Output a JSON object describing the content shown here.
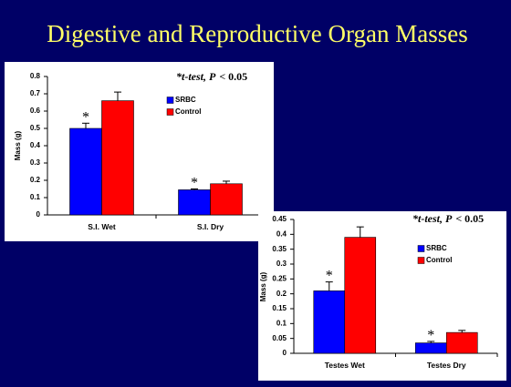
{
  "title": "Digestive and Reproductive Organ Masses",
  "chart_data": [
    {
      "type": "bar",
      "ylabel": "Mass (g)",
      "annotation": [
        "*t-test, P",
        "< 0.05"
      ],
      "categories": [
        "S.I. Wet",
        "S.I. Dry"
      ],
      "series": [
        {
          "name": "SRBC",
          "color": "#0000ff",
          "values": [
            0.5,
            0.145
          ],
          "errors": [
            0.03,
            0.005
          ],
          "significance": [
            "*",
            "*"
          ]
        },
        {
          "name": "Control",
          "color": "#ff0000",
          "values": [
            0.66,
            0.18
          ],
          "errors": [
            0.05,
            0.015
          ]
        }
      ],
      "ylim": [
        0,
        0.8
      ],
      "yticks": [
        0,
        0.1,
        0.2,
        0.3,
        0.4,
        0.5,
        0.6,
        0.7,
        0.8
      ]
    },
    {
      "type": "bar",
      "ylabel": "Mass (g)",
      "annotation": [
        "*t-test, P",
        "< 0.05"
      ],
      "categories": [
        "Testes Wet",
        "Testes Dry"
      ],
      "series": [
        {
          "name": "SRBC",
          "color": "#0000ff",
          "values": [
            0.21,
            0.035
          ],
          "errors": [
            0.03,
            0.005
          ],
          "significance": [
            "*",
            "*"
          ]
        },
        {
          "name": "Control",
          "color": "#ff0000",
          "values": [
            0.39,
            0.07
          ],
          "errors": [
            0.035,
            0.007
          ]
        }
      ],
      "ylim": [
        0,
        0.45
      ],
      "yticks": [
        0,
        0.05,
        0.1,
        0.15,
        0.2,
        0.25,
        0.3,
        0.35,
        0.4,
        0.45
      ]
    }
  ]
}
